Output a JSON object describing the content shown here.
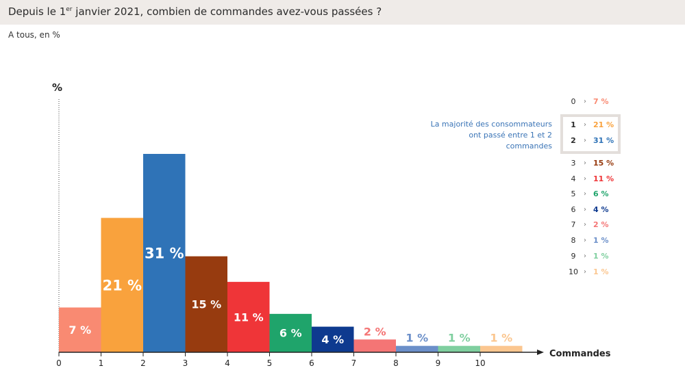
{
  "header": {
    "title_pre": "Depuis le 1",
    "title_sup": "er",
    "title_post": " janvier 2021, combien de commandes avez-vous passées ?",
    "subtitle": "A tous, en %"
  },
  "note": "La majorité des consommateurs ont passé entre 1 et 2 commandes",
  "chart_data": {
    "type": "bar",
    "ylabel": "%",
    "xlabel": "Commandes",
    "categories": [
      "0",
      "1",
      "2",
      "3",
      "4",
      "5",
      "6",
      "7",
      "8",
      "9",
      "10"
    ],
    "values": [
      7,
      21,
      31,
      15,
      11,
      6,
      4,
      2,
      1,
      1,
      1
    ],
    "value_labels": [
      "7 %",
      "21 %",
      "31 %",
      "15 %",
      "11 %",
      "6 %",
      "4 %",
      "2 %",
      "1 %",
      "1 %",
      "1 %"
    ],
    "ylim": [
      0,
      40
    ],
    "colors": [
      "#f98a72",
      "#f9a23d",
      "#2f73b7",
      "#973b0f",
      "#ef3538",
      "#1fa46b",
      "#0e3a8f",
      "#f47575",
      "#6b8fc9",
      "#7fcf9f",
      "#fbc68f"
    ],
    "highlight_categories": [
      "1",
      "2"
    ]
  }
}
